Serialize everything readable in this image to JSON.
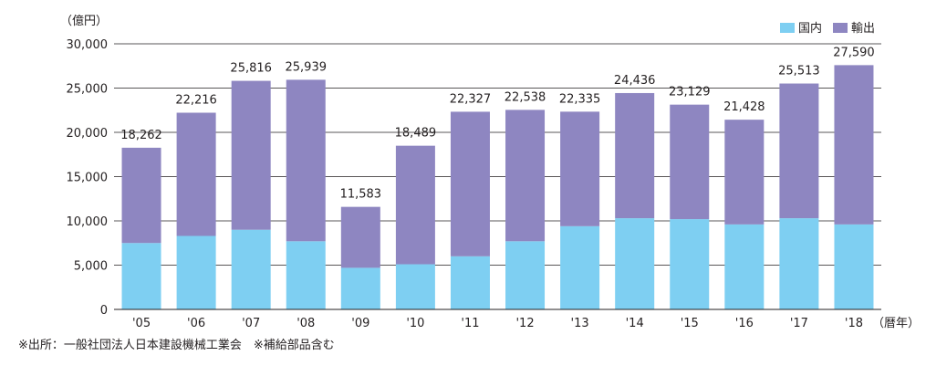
{
  "chart_data": {
    "type": "bar",
    "stacked": true,
    "y_unit_label": "（億円）",
    "x_unit_label": "（暦年）",
    "categories": [
      "'05",
      "'06",
      "'07",
      "'08",
      "'09",
      "'10",
      "'11",
      "'12",
      "'13",
      "'14",
      "'15",
      "'16",
      "'17",
      "'18"
    ],
    "series": [
      {
        "name": "国内",
        "color": "#7ecff2",
        "values": [
          7500,
          8300,
          9000,
          7700,
          4700,
          5100,
          6000,
          7700,
          9400,
          10300,
          10200,
          9600,
          10300,
          9600
        ]
      },
      {
        "name": "輸出",
        "color": "#8e86c1",
        "values": [
          10762,
          13916,
          16816,
          18239,
          6883,
          13389,
          16327,
          14838,
          12935,
          14136,
          12929,
          11828,
          15213,
          17990
        ]
      }
    ],
    "totals": [
      18262,
      22216,
      25816,
      25939,
      11583,
      18489,
      22327,
      22538,
      22335,
      24436,
      23129,
      21428,
      25513,
      27590
    ],
    "total_labels": [
      "18,262",
      "22,216",
      "25,816",
      "25,939",
      "11,583",
      "18,489",
      "22,327",
      "22,538",
      "22,335",
      "24,436",
      "23,129",
      "21,428",
      "25,513",
      "27,590"
    ],
    "y_ticks": [
      "0",
      "5,000",
      "10,000",
      "15,000",
      "20,000",
      "25,000",
      "30,000"
    ],
    "ylim": [
      0,
      30000
    ],
    "grid": true,
    "legend_position": "top-right"
  },
  "footnote": "※出所：一般社団法人日本建設機械工業会　※補給部品含む"
}
